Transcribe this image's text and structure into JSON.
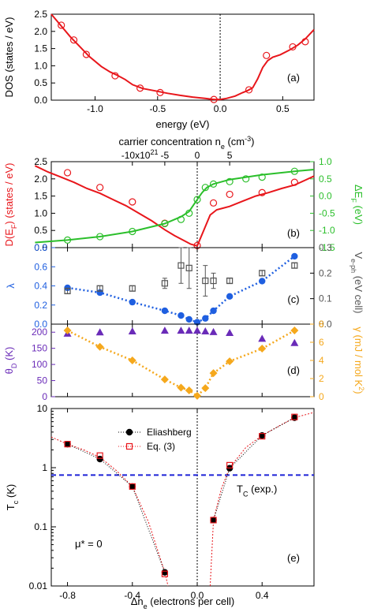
{
  "chart_data": [
    {
      "type": "line",
      "panel_label": "(a)",
      "xlabel": "energy (eV)",
      "ylabel": "DOS (states / eV)",
      "xlim": [
        -1.35,
        0.75
      ],
      "ylim": [
        0,
        2.5
      ],
      "xticks": [
        "-1.0",
        "-0.5",
        "0.0",
        "0.5"
      ],
      "yticks": [
        "0.0",
        "0.5",
        "1.0",
        "1.5",
        "2.0",
        "2.5"
      ],
      "series": [
        {
          "kind": "curve",
          "color": "#e8161b",
          "x": [
            -1.35,
            -1.28,
            -1.2,
            -1.12,
            -1.05,
            -0.95,
            -0.88,
            -0.82,
            -0.76,
            -0.7,
            -0.62,
            -0.52,
            -0.42,
            -0.32,
            -0.22,
            -0.12,
            -0.05,
            0.0,
            0.05,
            0.12,
            0.18,
            0.22,
            0.26,
            0.3,
            0.34,
            0.38,
            0.42,
            0.48,
            0.55,
            0.62,
            0.68,
            0.75
          ],
          "y": [
            2.5,
            2.2,
            1.85,
            1.55,
            1.28,
            0.98,
            0.82,
            0.72,
            0.6,
            0.45,
            0.34,
            0.27,
            0.2,
            0.14,
            0.09,
            0.05,
            0.02,
            0.02,
            0.05,
            0.12,
            0.22,
            0.28,
            0.36,
            0.62,
            0.95,
            1.15,
            1.25,
            1.32,
            1.45,
            1.6,
            1.78,
            2.05
          ]
        },
        {
          "kind": "points",
          "color": "#e8161b",
          "marker": "open-circle",
          "x": [
            -1.27,
            -1.17,
            -1.07,
            -0.84,
            -0.64,
            -0.48,
            -0.05,
            0.23,
            0.37,
            0.58,
            0.68
          ],
          "y": [
            2.18,
            1.75,
            1.33,
            0.71,
            0.35,
            0.22,
            0.02,
            0.3,
            1.3,
            1.55,
            1.7
          ]
        }
      ]
    },
    {
      "type": "line",
      "panel_label": "(b)",
      "xlabel_top": "carrier concentration n",
      "xlabel_top_sub": "e",
      "xlabel_top_unit": "(cm",
      "xlabel_top_sup": "-3",
      "xlabel_top_close": ")",
      "xticks_top": [
        "-10x10",
        "-5",
        "0",
        "5"
      ],
      "xticks_top_sup": "21",
      "ylabel_left": "D(E",
      "ylabel_left_sub": "F",
      "ylabel_left_unit": ") (states / eV)",
      "ylabel_right": "ΔE",
      "ylabel_right_sub": "F",
      "ylabel_right_unit": " (eV)",
      "ylim_left": [
        0,
        2.5
      ],
      "ylim_right": [
        -1.5,
        1.0
      ],
      "yticks_left": [
        "0.0",
        "0.5",
        "1.0",
        "1.5",
        "2.0",
        "2.5"
      ],
      "yticks_right": [
        "-1.5",
        "-1.0",
        "-0.5",
        "0.0",
        "0.5",
        "1.0"
      ],
      "series": [
        {
          "kind": "curve",
          "color": "#e8161b",
          "axis": "left",
          "x": [
            -1.0,
            -0.92,
            -0.84,
            -0.76,
            -0.68,
            -0.6,
            -0.52,
            -0.44,
            -0.36,
            -0.28,
            -0.2,
            -0.14,
            -0.08,
            -0.04,
            0.0,
            0.04,
            0.08,
            0.12,
            0.16,
            0.2,
            0.28,
            0.36,
            0.44,
            0.52,
            0.6,
            0.66,
            0.72
          ],
          "y": [
            2.38,
            2.2,
            2.05,
            1.9,
            1.72,
            1.58,
            1.4,
            1.22,
            1.0,
            0.78,
            0.52,
            0.35,
            0.2,
            0.1,
            0.05,
            0.5,
            0.95,
            1.1,
            1.15,
            1.2,
            1.35,
            1.5,
            1.6,
            1.72,
            1.82,
            1.95,
            2.08
          ]
        },
        {
          "kind": "points",
          "color": "#e8161b",
          "marker": "open-circle",
          "axis": "left",
          "x": [
            -0.8,
            -0.6,
            -0.4,
            -0.2,
            0.0,
            0.1,
            0.2,
            0.4,
            0.6
          ],
          "y": [
            2.18,
            1.75,
            1.33,
            0.71,
            0.06,
            1.3,
            1.55,
            1.6,
            1.9
          ]
        },
        {
          "kind": "curve",
          "color": "#2bbf2b",
          "axis": "right",
          "x": [
            -1.0,
            -0.8,
            -0.6,
            -0.4,
            -0.2,
            -0.1,
            -0.05,
            0.0,
            0.03,
            0.06,
            0.1,
            0.2,
            0.4,
            0.6,
            0.72
          ],
          "y": [
            -1.35,
            -1.28,
            -1.18,
            -1.03,
            -0.8,
            -0.6,
            -0.45,
            -0.1,
            0.1,
            0.25,
            0.35,
            0.48,
            0.62,
            0.72,
            0.77
          ]
        },
        {
          "kind": "points",
          "color": "#2bbf2b",
          "marker": "open-circle",
          "axis": "right",
          "x": [
            -0.8,
            -0.6,
            -0.4,
            -0.2,
            -0.1,
            -0.05,
            0.0,
            0.05,
            0.1,
            0.2,
            0.3,
            0.4,
            0.6
          ],
          "y": [
            -1.28,
            -1.18,
            -1.03,
            -0.8,
            -0.68,
            -0.5,
            -0.1,
            0.25,
            0.35,
            0.42,
            0.5,
            0.55,
            0.72
          ]
        }
      ]
    },
    {
      "type": "scatter",
      "panel_label": "(c)",
      "ylabel_left": "λ",
      "ylabel_right": "V",
      "ylabel_right_sub": "e-ph",
      "ylabel_right_unit": " (eV cell)",
      "ylim_left": [
        0,
        0.8
      ],
      "ylim_right": [
        0,
        0.3
      ],
      "yticks_left": [
        "0.0",
        "0.2",
        "0.4",
        "0.6",
        "0.8"
      ],
      "yticks_right": [
        "0.0",
        "0.1",
        "0.2",
        "0.3"
      ],
      "series": [
        {
          "kind": "points",
          "color": "#1f5fe0",
          "marker": "filled-circle",
          "axis": "left",
          "dotted": true,
          "x": [
            -0.8,
            -0.6,
            -0.4,
            -0.2,
            -0.1,
            -0.05,
            0.0,
            0.05,
            0.1,
            0.2,
            0.4,
            0.6
          ],
          "y": [
            0.38,
            0.33,
            0.23,
            0.14,
            0.09,
            0.05,
            0.02,
            0.06,
            0.14,
            0.29,
            0.45,
            0.71
          ]
        },
        {
          "kind": "errorbars",
          "color": "#555555",
          "marker": "open-square",
          "axis": "right",
          "x": [
            -0.8,
            -0.6,
            -0.4,
            -0.2,
            -0.1,
            -0.05,
            0.05,
            0.1,
            0.2,
            0.4,
            0.6
          ],
          "y": [
            0.13,
            0.14,
            0.14,
            0.16,
            0.23,
            0.22,
            0.17,
            0.17,
            0.17,
            0.2,
            0.23
          ],
          "err": [
            0.01,
            0.01,
            0.01,
            0.02,
            0.07,
            0.08,
            0.06,
            0.03,
            0.01,
            0.01,
            0.01
          ]
        }
      ]
    },
    {
      "type": "scatter",
      "panel_label": "(d)",
      "ylabel_left": "θ",
      "ylabel_left_sub": "D",
      "ylabel_left_unit": " (K)",
      "ylabel_right": "γ",
      "ylabel_right_unit": " (mJ / mol K",
      "ylabel_right_sup": "2",
      "ylabel_right_close": ")",
      "ylim_left": [
        0,
        225
      ],
      "ylim_right": [
        0,
        8
      ],
      "yticks_left": [
        "0",
        "50",
        "100",
        "150",
        "200"
      ],
      "yticks_right": [
        "0",
        "2",
        "4",
        "6",
        "8"
      ],
      "series": [
        {
          "kind": "points",
          "color": "#6a2bb8",
          "marker": "filled-triangle",
          "axis": "left",
          "x": [
            -0.8,
            -0.6,
            -0.4,
            -0.2,
            -0.1,
            -0.05,
            0.0,
            0.05,
            0.1,
            0.2,
            0.4,
            0.6
          ],
          "y": [
            196,
            200,
            203,
            205,
            205,
            205,
            205,
            203,
            201,
            198,
            180,
            167
          ]
        },
        {
          "kind": "points",
          "color": "#f5a81c",
          "marker": "filled-diamond",
          "axis": "right",
          "dotted": true,
          "x": [
            -0.8,
            -0.6,
            -0.4,
            -0.2,
            -0.1,
            -0.05,
            0.0,
            0.05,
            0.1,
            0.2,
            0.4,
            0.6
          ],
          "y": [
            7.3,
            5.5,
            4.0,
            1.9,
            1.0,
            0.7,
            0.1,
            0.95,
            2.6,
            3.9,
            5.3,
            7.3
          ]
        }
      ]
    },
    {
      "type": "line",
      "panel_label": "(e)",
      "xlabel": "Δn",
      "xlabel_sub": "e",
      "xlabel_unit": " (electrons per cell)",
      "ylabel": "T",
      "ylabel_sub": "c",
      "ylabel_unit": " (K)",
      "ylog": true,
      "ylim": [
        0.01,
        10
      ],
      "xlim": [
        -0.9,
        0.72
      ],
      "xticks": [
        "-0.8",
        "-0.4",
        "0.0",
        "0.4"
      ],
      "yticks": [
        "0.01",
        "0.1",
        "1",
        "10"
      ],
      "legend": [
        "Eliashberg",
        "Eq. (3)"
      ],
      "annotation_mu": "μ* = 0",
      "annotation_tc": "T",
      "annotation_tc_sub": "C",
      "annotation_tc_rest": " (exp.)",
      "tc_exp": 0.75,
      "series": [
        {
          "name": "Eliashberg",
          "kind": "points",
          "color": "#000000",
          "marker": "filled-circle",
          "x": [
            -0.8,
            -0.6,
            -0.4,
            -0.2,
            0.1,
            0.2,
            0.4,
            0.6
          ],
          "y": [
            2.5,
            1.4,
            0.48,
            0.017,
            0.13,
            0.98,
            3.5,
            7.0
          ]
        },
        {
          "name": "Eq. (3)",
          "kind": "points",
          "color": "#e8161b",
          "marker": "open-square",
          "x": [
            -0.8,
            -0.6,
            -0.4,
            -0.2,
            0.1,
            0.2,
            0.4,
            0.6
          ],
          "y": [
            2.5,
            1.6,
            0.48,
            0.016,
            0.13,
            1.1,
            3.4,
            7.2
          ]
        },
        {
          "kind": "curve",
          "color": "#e8161b",
          "thin": true,
          "x": [
            -0.9,
            -0.8,
            -0.7,
            -0.6,
            -0.5,
            -0.4,
            -0.3,
            -0.2,
            -0.18
          ],
          "y": [
            3.3,
            2.5,
            2.0,
            1.5,
            0.9,
            0.48,
            0.12,
            0.017,
            0.01
          ]
        },
        {
          "kind": "curve",
          "color": "#e8161b",
          "thin": true,
          "x": [
            0.08,
            0.1,
            0.15,
            0.2,
            0.3,
            0.4,
            0.5,
            0.6,
            0.72
          ],
          "y": [
            0.01,
            0.13,
            0.45,
            1.0,
            2.2,
            3.5,
            5.0,
            7.0,
            8.6
          ]
        }
      ]
    }
  ]
}
